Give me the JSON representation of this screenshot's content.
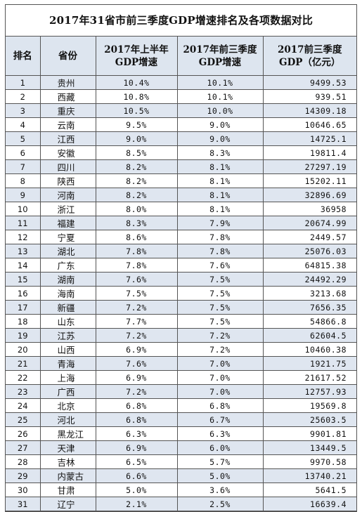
{
  "title": "2017年31省市前三季度GDP增速排名及各项数据对比",
  "headers": {
    "rank": "排名",
    "province": "省份",
    "h1_growth": "2017年上半年GDP增速",
    "q3_growth": "2017年前三季度GDP增速",
    "q3_gdp": "2017前三季度GDP（亿元）"
  },
  "rows": [
    {
      "rank": "1",
      "province": "贵州",
      "h1": "10.4%",
      "q3": "10.1%",
      "gdp": "9499.53"
    },
    {
      "rank": "2",
      "province": "西藏",
      "h1": "10.8%",
      "q3": "10.1%",
      "gdp": "939.51"
    },
    {
      "rank": "3",
      "province": "重庆",
      "h1": "10.5%",
      "q3": "10.0%",
      "gdp": "14309.18"
    },
    {
      "rank": "4",
      "province": "云南",
      "h1": "9.5%",
      "q3": "9.0%",
      "gdp": "10646.65"
    },
    {
      "rank": "5",
      "province": "江西",
      "h1": "9.0%",
      "q3": "9.0%",
      "gdp": "14725.1"
    },
    {
      "rank": "6",
      "province": "安徽",
      "h1": "8.5%",
      "q3": "8.3%",
      "gdp": "19811.4"
    },
    {
      "rank": "7",
      "province": "四川",
      "h1": "8.2%",
      "q3": "8.1%",
      "gdp": "27297.19"
    },
    {
      "rank": "8",
      "province": "陕西",
      "h1": "8.2%",
      "q3": "8.1%",
      "gdp": "15202.11"
    },
    {
      "rank": "9",
      "province": "河南",
      "h1": "8.2%",
      "q3": "8.1%",
      "gdp": "32896.69"
    },
    {
      "rank": "10",
      "province": "浙江",
      "h1": "8.0%",
      "q3": "8.1%",
      "gdp": "36958"
    },
    {
      "rank": "11",
      "province": "福建",
      "h1": "8.3%",
      "q3": "7.9%",
      "gdp": "20674.99"
    },
    {
      "rank": "12",
      "province": "宁夏",
      "h1": "8.6%",
      "q3": "7.8%",
      "gdp": "2449.57"
    },
    {
      "rank": "13",
      "province": "湖北",
      "h1": "7.8%",
      "q3": "7.8%",
      "gdp": "25076.03"
    },
    {
      "rank": "14",
      "province": "广东",
      "h1": "7.8%",
      "q3": "7.6%",
      "gdp": "64815.38"
    },
    {
      "rank": "15",
      "province": "湖南",
      "h1": "7.6%",
      "q3": "7.5%",
      "gdp": "24492.29"
    },
    {
      "rank": "16",
      "province": "海南",
      "h1": "7.5%",
      "q3": "7.5%",
      "gdp": "3213.68"
    },
    {
      "rank": "17",
      "province": "新疆",
      "h1": "7.2%",
      "q3": "7.5%",
      "gdp": "7656.35"
    },
    {
      "rank": "18",
      "province": "山东",
      "h1": "7.7%",
      "q3": "7.5%",
      "gdp": "54866.8"
    },
    {
      "rank": "19",
      "province": "江苏",
      "h1": "7.2%",
      "q3": "7.2%",
      "gdp": "62604.5"
    },
    {
      "rank": "20",
      "province": "山西",
      "h1": "6.9%",
      "q3": "7.2%",
      "gdp": "10460.38"
    },
    {
      "rank": "21",
      "province": "青海",
      "h1": "7.6%",
      "q3": "7.0%",
      "gdp": "1921.75"
    },
    {
      "rank": "22",
      "province": "上海",
      "h1": "6.9%",
      "q3": "7.0%",
      "gdp": "21617.52"
    },
    {
      "rank": "23",
      "province": "广西",
      "h1": "7.2%",
      "q3": "7.0%",
      "gdp": "12757.93"
    },
    {
      "rank": "24",
      "province": "北京",
      "h1": "6.8%",
      "q3": "6.8%",
      "gdp": "19569.8"
    },
    {
      "rank": "25",
      "province": "河北",
      "h1": "6.8%",
      "q3": "6.7%",
      "gdp": "25603.5"
    },
    {
      "rank": "26",
      "province": "黑龙江",
      "h1": "6.3%",
      "q3": "6.3%",
      "gdp": "9901.81"
    },
    {
      "rank": "27",
      "province": "天津",
      "h1": "6.9%",
      "q3": "6.0%",
      "gdp": "13449.5"
    },
    {
      "rank": "28",
      "province": "吉林",
      "h1": "6.5%",
      "q3": "5.7%",
      "gdp": "9970.58"
    },
    {
      "rank": "29",
      "province": "内蒙古",
      "h1": "6.6%",
      "q3": "5.0%",
      "gdp": "13740.21"
    },
    {
      "rank": "30",
      "province": "甘肃",
      "h1": "5.0%",
      "q3": "3.6%",
      "gdp": "5641.5"
    },
    {
      "rank": "31",
      "province": "辽宁",
      "h1": "2.1%",
      "q3": "2.5%",
      "gdp": "16639.4"
    }
  ]
}
